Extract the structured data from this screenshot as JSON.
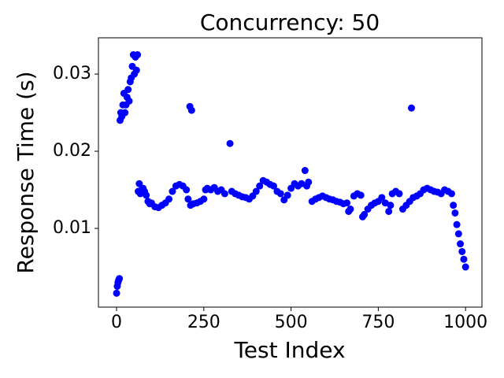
{
  "chart_data": {
    "type": "scatter",
    "title": "Concurrency: 50",
    "xlabel": "Test Index",
    "ylabel": "Response Time (s)",
    "color": "#0000ff",
    "x": [
      0,
      2,
      4,
      6,
      8,
      10,
      12,
      15,
      18,
      21,
      24,
      27,
      30,
      33,
      36,
      39,
      42,
      45,
      48,
      51,
      54,
      57,
      60,
      62,
      65,
      68,
      72,
      76,
      80,
      85,
      90,
      95,
      100,
      110,
      120,
      130,
      140,
      150,
      160,
      170,
      180,
      190,
      200,
      205,
      210,
      215,
      212,
      220,
      230,
      240,
      250,
      255,
      260,
      270,
      280,
      290,
      300,
      310,
      325,
      330,
      340,
      350,
      360,
      370,
      380,
      390,
      400,
      410,
      420,
      430,
      440,
      450,
      460,
      470,
      480,
      490,
      500,
      510,
      520,
      530,
      540,
      545,
      550,
      560,
      570,
      580,
      590,
      600,
      610,
      620,
      630,
      640,
      650,
      660,
      665,
      670,
      680,
      690,
      700,
      705,
      710,
      720,
      730,
      740,
      750,
      760,
      770,
      780,
      785,
      790,
      800,
      810,
      820,
      830,
      840,
      845,
      850,
      860,
      870,
      880,
      890,
      900,
      910,
      920,
      930,
      940,
      950,
      960,
      965,
      970,
      975,
      980,
      985,
      990,
      995,
      1000
    ],
    "y": [
      0.0016,
      0.0025,
      0.003,
      0.0033,
      0.0035,
      0.024,
      0.025,
      0.0245,
      0.026,
      0.0275,
      0.025,
      0.026,
      0.027,
      0.028,
      0.0265,
      0.029,
      0.0295,
      0.031,
      0.0325,
      0.03,
      0.0322,
      0.0305,
      0.0325,
      0.0148,
      0.0158,
      0.0145,
      0.015,
      0.0152,
      0.0148,
      0.0143,
      0.0135,
      0.0132,
      0.0133,
      0.0128,
      0.0127,
      0.013,
      0.0133,
      0.0138,
      0.0148,
      0.0155,
      0.0157,
      0.0155,
      0.015,
      0.0138,
      0.0258,
      0.0253,
      0.013,
      0.0132,
      0.0133,
      0.0135,
      0.0138,
      0.015,
      0.0152,
      0.015,
      0.0153,
      0.0148,
      0.015,
      0.0145,
      0.021,
      0.0148,
      0.0145,
      0.0143,
      0.0141,
      0.014,
      0.0138,
      0.0142,
      0.0148,
      0.0155,
      0.0162,
      0.016,
      0.0157,
      0.0155,
      0.0148,
      0.0145,
      0.0137,
      0.0143,
      0.0152,
      0.0158,
      0.0155,
      0.0158,
      0.0175,
      0.0155,
      0.016,
      0.0135,
      0.0138,
      0.014,
      0.0142,
      0.014,
      0.0138,
      0.0137,
      0.0135,
      0.0134,
      0.0132,
      0.0133,
      0.0122,
      0.0125,
      0.0142,
      0.0145,
      0.0143,
      0.0115,
      0.0118,
      0.0125,
      0.013,
      0.0133,
      0.0135,
      0.014,
      0.0133,
      0.0122,
      0.013,
      0.0145,
      0.0148,
      0.0145,
      0.0125,
      0.013,
      0.0135,
      0.0256,
      0.014,
      0.0142,
      0.0145,
      0.015,
      0.0152,
      0.015,
      0.0148,
      0.0147,
      0.0145,
      0.015,
      0.0148,
      0.0145,
      0.013,
      0.012,
      0.0105,
      0.0093,
      0.008,
      0.007,
      0.006,
      0.005
    ],
    "xlim": [
      -52,
      1047
    ],
    "ylim": [
      -0.0002,
      0.0347
    ],
    "xticks": [
      0,
      250,
      500,
      750,
      1000
    ],
    "yticks": [
      0.01,
      0.02,
      0.03
    ]
  }
}
